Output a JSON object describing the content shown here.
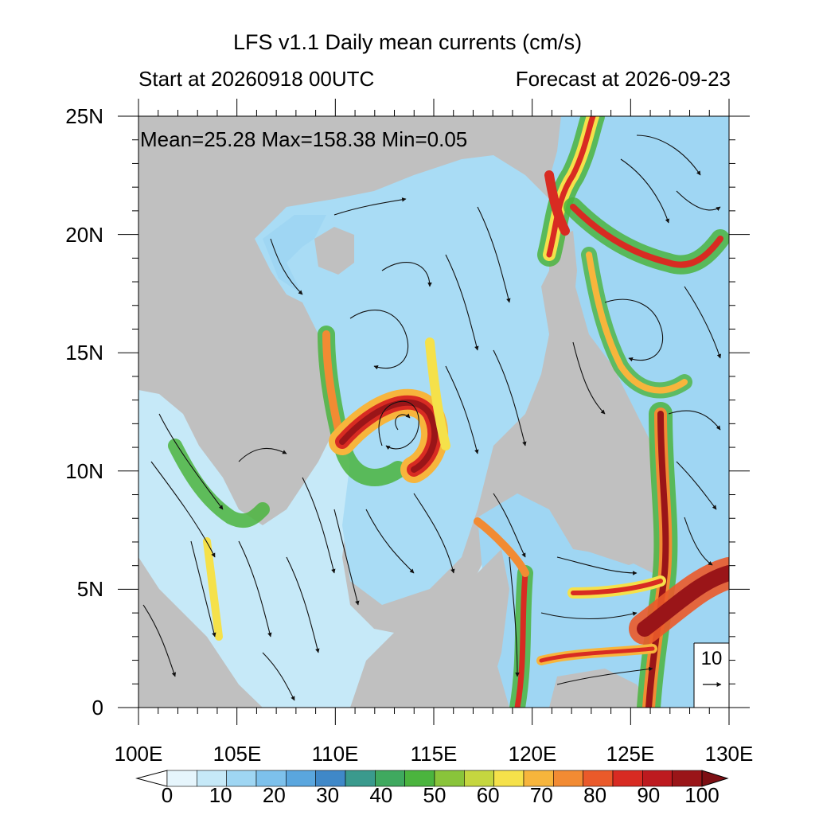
{
  "title": "LFS v1.1 Daily mean currents (cm/s)",
  "start_label": "Start at 20260918 00UTC",
  "forecast_label": "Forecast at 2026-09-23",
  "stats_text": "Mean=25.28  Max=158.38  Min=0.05",
  "reference_vector": {
    "label": "10"
  },
  "latitude_labels": [
    "25N",
    "20N",
    "15N",
    "10N",
    "5N",
    "0"
  ],
  "longitude_labels": [
    "100E",
    "105E",
    "110E",
    "115E",
    "120E",
    "125E",
    "130E"
  ],
  "colorbar": {
    "labels": [
      "0",
      "10",
      "20",
      "30",
      "40",
      "50",
      "60",
      "70",
      "80",
      "90",
      "100"
    ],
    "colors": [
      "#e6f5fc",
      "#c6e9f8",
      "#9fd6f3",
      "#7dc1ec",
      "#5aa6de",
      "#3f88c8",
      "#3a9a8d",
      "#3fa95f",
      "#4bb43e",
      "#89c43a",
      "#c5d63f",
      "#f5e14a",
      "#f7b53c",
      "#f28b33",
      "#ea5a2a",
      "#d82b22",
      "#bd1a1f",
      "#9a1518"
    ]
  },
  "colors": {
    "land": "#c0c0c0",
    "ocean_low": "#c6e9f8",
    "ocean_mid": "#6fb6e6",
    "jet_green": "#4bb43e",
    "jet_yellow": "#f5e14a",
    "jet_red": "#d82b22"
  }
}
